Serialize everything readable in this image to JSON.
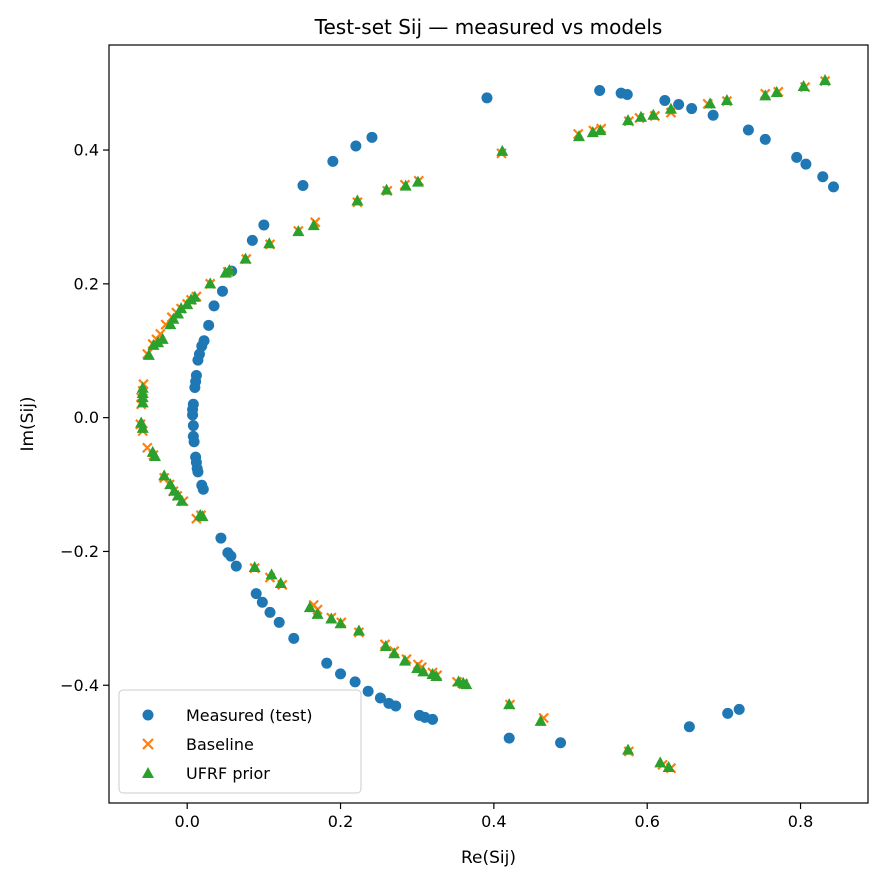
{
  "chart_data": {
    "type": "scatter",
    "title": "Test-set Sij — measured vs models",
    "xlabel": "Re(Sij)",
    "ylabel": "Im(Sij)",
    "xlim": [
      -0.102,
      0.888
    ],
    "ylim": [
      -0.576,
      0.557
    ],
    "xticks": [
      0.0,
      0.2,
      0.4,
      0.6,
      0.8
    ],
    "xtick_labels": [
      "0.0",
      "0.2",
      "0.4",
      "0.6",
      "0.8"
    ],
    "yticks": [
      -0.4,
      -0.2,
      0.0,
      0.2,
      0.4
    ],
    "ytick_labels": [
      "−0.4",
      "−0.2",
      "0.0",
      "0.2",
      "0.4"
    ],
    "grid": false,
    "legend": {
      "position": "lower-left"
    },
    "series": [
      {
        "name": "Measured (test)",
        "marker": "circle",
        "color": "#1f77b4",
        "points": [
          [
            0.391,
            0.478
          ],
          [
            0.538,
            0.489
          ],
          [
            0.566,
            0.485
          ],
          [
            0.574,
            0.483
          ],
          [
            0.623,
            0.474
          ],
          [
            0.641,
            0.468
          ],
          [
            0.658,
            0.462
          ],
          [
            0.686,
            0.452
          ],
          [
            0.732,
            0.43
          ],
          [
            0.754,
            0.416
          ],
          [
            0.795,
            0.389
          ],
          [
            0.807,
            0.379
          ],
          [
            0.829,
            0.36
          ],
          [
            0.843,
            0.345
          ],
          [
            0.241,
            0.419
          ],
          [
            0.22,
            0.406
          ],
          [
            0.19,
            0.383
          ],
          [
            0.151,
            0.347
          ],
          [
            0.1,
            0.288
          ],
          [
            0.085,
            0.265
          ],
          [
            0.058,
            0.219
          ],
          [
            0.046,
            0.189
          ],
          [
            0.035,
            0.167
          ],
          [
            0.028,
            0.138
          ],
          [
            0.022,
            0.115
          ],
          [
            0.019,
            0.107
          ],
          [
            0.016,
            0.095
          ],
          [
            0.014,
            0.086
          ],
          [
            0.012,
            0.063
          ],
          [
            0.011,
            0.054
          ],
          [
            0.01,
            0.045
          ],
          [
            0.008,
            0.02
          ],
          [
            0.007,
            0.012
          ],
          [
            0.007,
            0.004
          ],
          [
            0.008,
            -0.012
          ],
          [
            0.008,
            -0.028
          ],
          [
            0.009,
            -0.036
          ],
          [
            0.011,
            -0.059
          ],
          [
            0.012,
            -0.067
          ],
          [
            0.013,
            -0.076
          ],
          [
            0.014,
            -0.081
          ],
          [
            0.019,
            -0.101
          ],
          [
            0.021,
            -0.107
          ],
          [
            0.044,
            -0.18
          ],
          [
            0.053,
            -0.202
          ],
          [
            0.057,
            -0.207
          ],
          [
            0.064,
            -0.222
          ],
          [
            0.09,
            -0.263
          ],
          [
            0.098,
            -0.276
          ],
          [
            0.108,
            -0.291
          ],
          [
            0.12,
            -0.306
          ],
          [
            0.139,
            -0.33
          ],
          [
            0.182,
            -0.367
          ],
          [
            0.2,
            -0.383
          ],
          [
            0.219,
            -0.395
          ],
          [
            0.236,
            -0.409
          ],
          [
            0.252,
            -0.419
          ],
          [
            0.263,
            -0.427
          ],
          [
            0.272,
            -0.431
          ],
          [
            0.303,
            -0.445
          ],
          [
            0.31,
            -0.448
          ],
          [
            0.32,
            -0.451
          ],
          [
            0.42,
            -0.479
          ],
          [
            0.487,
            -0.486
          ],
          [
            0.655,
            -0.462
          ],
          [
            0.705,
            -0.442
          ],
          [
            0.72,
            -0.436
          ]
        ]
      },
      {
        "name": "Baseline",
        "marker": "x",
        "color": "#ff7f0e",
        "points": [
          [
            0.832,
            0.503
          ],
          [
            0.806,
            0.494
          ],
          [
            0.771,
            0.487
          ],
          [
            0.754,
            0.484
          ],
          [
            0.704,
            0.473
          ],
          [
            0.679,
            0.469
          ],
          [
            0.631,
            0.456
          ],
          [
            0.61,
            0.451
          ],
          [
            0.59,
            0.448
          ],
          [
            0.576,
            0.443
          ],
          [
            0.54,
            0.432
          ],
          [
            0.53,
            0.429
          ],
          [
            0.51,
            0.424
          ],
          [
            0.41,
            0.395
          ],
          [
            0.302,
            0.354
          ],
          [
            0.284,
            0.348
          ],
          [
            0.261,
            0.339
          ],
          [
            0.222,
            0.322
          ],
          [
            0.167,
            0.292
          ],
          [
            0.145,
            0.279
          ],
          [
            0.108,
            0.259
          ],
          [
            0.077,
            0.237
          ],
          [
            0.053,
            0.218
          ],
          [
            0.03,
            0.2
          ],
          [
            0.012,
            0.181
          ],
          [
            0.005,
            0.176
          ],
          [
            0.0,
            0.17
          ],
          [
            -0.008,
            0.163
          ],
          [
            -0.014,
            0.157
          ],
          [
            -0.02,
            0.15
          ],
          [
            -0.028,
            0.139
          ],
          [
            -0.035,
            0.125
          ],
          [
            -0.04,
            0.117
          ],
          [
            -0.045,
            0.11
          ],
          [
            -0.052,
            0.095
          ],
          [
            -0.057,
            0.05
          ],
          [
            -0.058,
            0.04
          ],
          [
            -0.06,
            0.03
          ],
          [
            -0.06,
            0.02
          ],
          [
            -0.061,
            -0.01
          ],
          [
            -0.058,
            -0.02
          ],
          [
            -0.052,
            -0.045
          ],
          [
            -0.044,
            -0.056
          ],
          [
            -0.03,
            -0.09
          ],
          [
            -0.023,
            -0.1
          ],
          [
            -0.018,
            -0.11
          ],
          [
            -0.013,
            -0.117
          ],
          [
            -0.005,
            -0.125
          ],
          [
            0.012,
            -0.151
          ],
          [
            0.018,
            -0.146
          ],
          [
            0.088,
            -0.225
          ],
          [
            0.108,
            -0.239
          ],
          [
            0.124,
            -0.25
          ],
          [
            0.165,
            -0.28
          ],
          [
            0.17,
            -0.287
          ],
          [
            0.188,
            -0.299
          ],
          [
            0.201,
            -0.306
          ],
          [
            0.224,
            -0.321
          ],
          [
            0.258,
            -0.339
          ],
          [
            0.27,
            -0.349
          ],
          [
            0.286,
            -0.361
          ],
          [
            0.301,
            -0.369
          ],
          [
            0.306,
            -0.373
          ],
          [
            0.32,
            -0.381
          ],
          [
            0.326,
            -0.385
          ],
          [
            0.352,
            -0.395
          ],
          [
            0.36,
            -0.398
          ],
          [
            0.421,
            -0.429
          ],
          [
            0.465,
            -0.449
          ],
          [
            0.576,
            -0.499
          ],
          [
            0.62,
            -0.519
          ],
          [
            0.631,
            -0.524
          ]
        ]
      },
      {
        "name": "UFRF prior",
        "marker": "triangle",
        "color": "#2ca02c",
        "points": [
          [
            0.832,
            0.504
          ],
          [
            0.804,
            0.495
          ],
          [
            0.769,
            0.486
          ],
          [
            0.754,
            0.481
          ],
          [
            0.704,
            0.474
          ],
          [
            0.682,
            0.469
          ],
          [
            0.631,
            0.461
          ],
          [
            0.608,
            0.452
          ],
          [
            0.592,
            0.449
          ],
          [
            0.575,
            0.444
          ],
          [
            0.539,
            0.429
          ],
          [
            0.529,
            0.426
          ],
          [
            0.511,
            0.42
          ],
          [
            0.411,
            0.398
          ],
          [
            0.301,
            0.352
          ],
          [
            0.285,
            0.346
          ],
          [
            0.26,
            0.34
          ],
          [
            0.222,
            0.324
          ],
          [
            0.165,
            0.287
          ],
          [
            0.145,
            0.278
          ],
          [
            0.107,
            0.26
          ],
          [
            0.076,
            0.237
          ],
          [
            0.055,
            0.22
          ],
          [
            0.05,
            0.216
          ],
          [
            0.03,
            0.2
          ],
          [
            0.01,
            0.18
          ],
          [
            0.005,
            0.176
          ],
          [
            0.0,
            0.169
          ],
          [
            -0.008,
            0.163
          ],
          [
            -0.012,
            0.155
          ],
          [
            -0.018,
            0.147
          ],
          [
            -0.022,
            0.139
          ],
          [
            -0.032,
            0.117
          ],
          [
            -0.038,
            0.112
          ],
          [
            -0.044,
            0.108
          ],
          [
            -0.05,
            0.093
          ],
          [
            -0.058,
            0.044
          ],
          [
            -0.058,
            0.036
          ],
          [
            -0.058,
            0.03
          ],
          [
            -0.058,
            0.022
          ],
          [
            -0.06,
            -0.008
          ],
          [
            -0.058,
            -0.016
          ],
          [
            -0.045,
            -0.052
          ],
          [
            -0.042,
            -0.058
          ],
          [
            -0.03,
            -0.087
          ],
          [
            -0.022,
            -0.1
          ],
          [
            -0.017,
            -0.11
          ],
          [
            -0.012,
            -0.117
          ],
          [
            -0.007,
            -0.125
          ],
          [
            0.017,
            -0.146
          ],
          [
            0.02,
            -0.148
          ],
          [
            0.088,
            -0.224
          ],
          [
            0.11,
            -0.235
          ],
          [
            0.122,
            -0.248
          ],
          [
            0.16,
            -0.284
          ],
          [
            0.17,
            -0.294
          ],
          [
            0.188,
            -0.301
          ],
          [
            0.2,
            -0.308
          ],
          [
            0.224,
            -0.319
          ],
          [
            0.259,
            -0.342
          ],
          [
            0.27,
            -0.353
          ],
          [
            0.284,
            -0.364
          ],
          [
            0.3,
            -0.375
          ],
          [
            0.308,
            -0.38
          ],
          [
            0.32,
            -0.384
          ],
          [
            0.325,
            -0.387
          ],
          [
            0.354,
            -0.395
          ],
          [
            0.36,
            -0.397
          ],
          [
            0.364,
            -0.399
          ],
          [
            0.42,
            -0.429
          ],
          [
            0.461,
            -0.454
          ],
          [
            0.575,
            -0.497
          ],
          [
            0.617,
            -0.516
          ],
          [
            0.628,
            -0.523
          ]
        ]
      }
    ]
  }
}
